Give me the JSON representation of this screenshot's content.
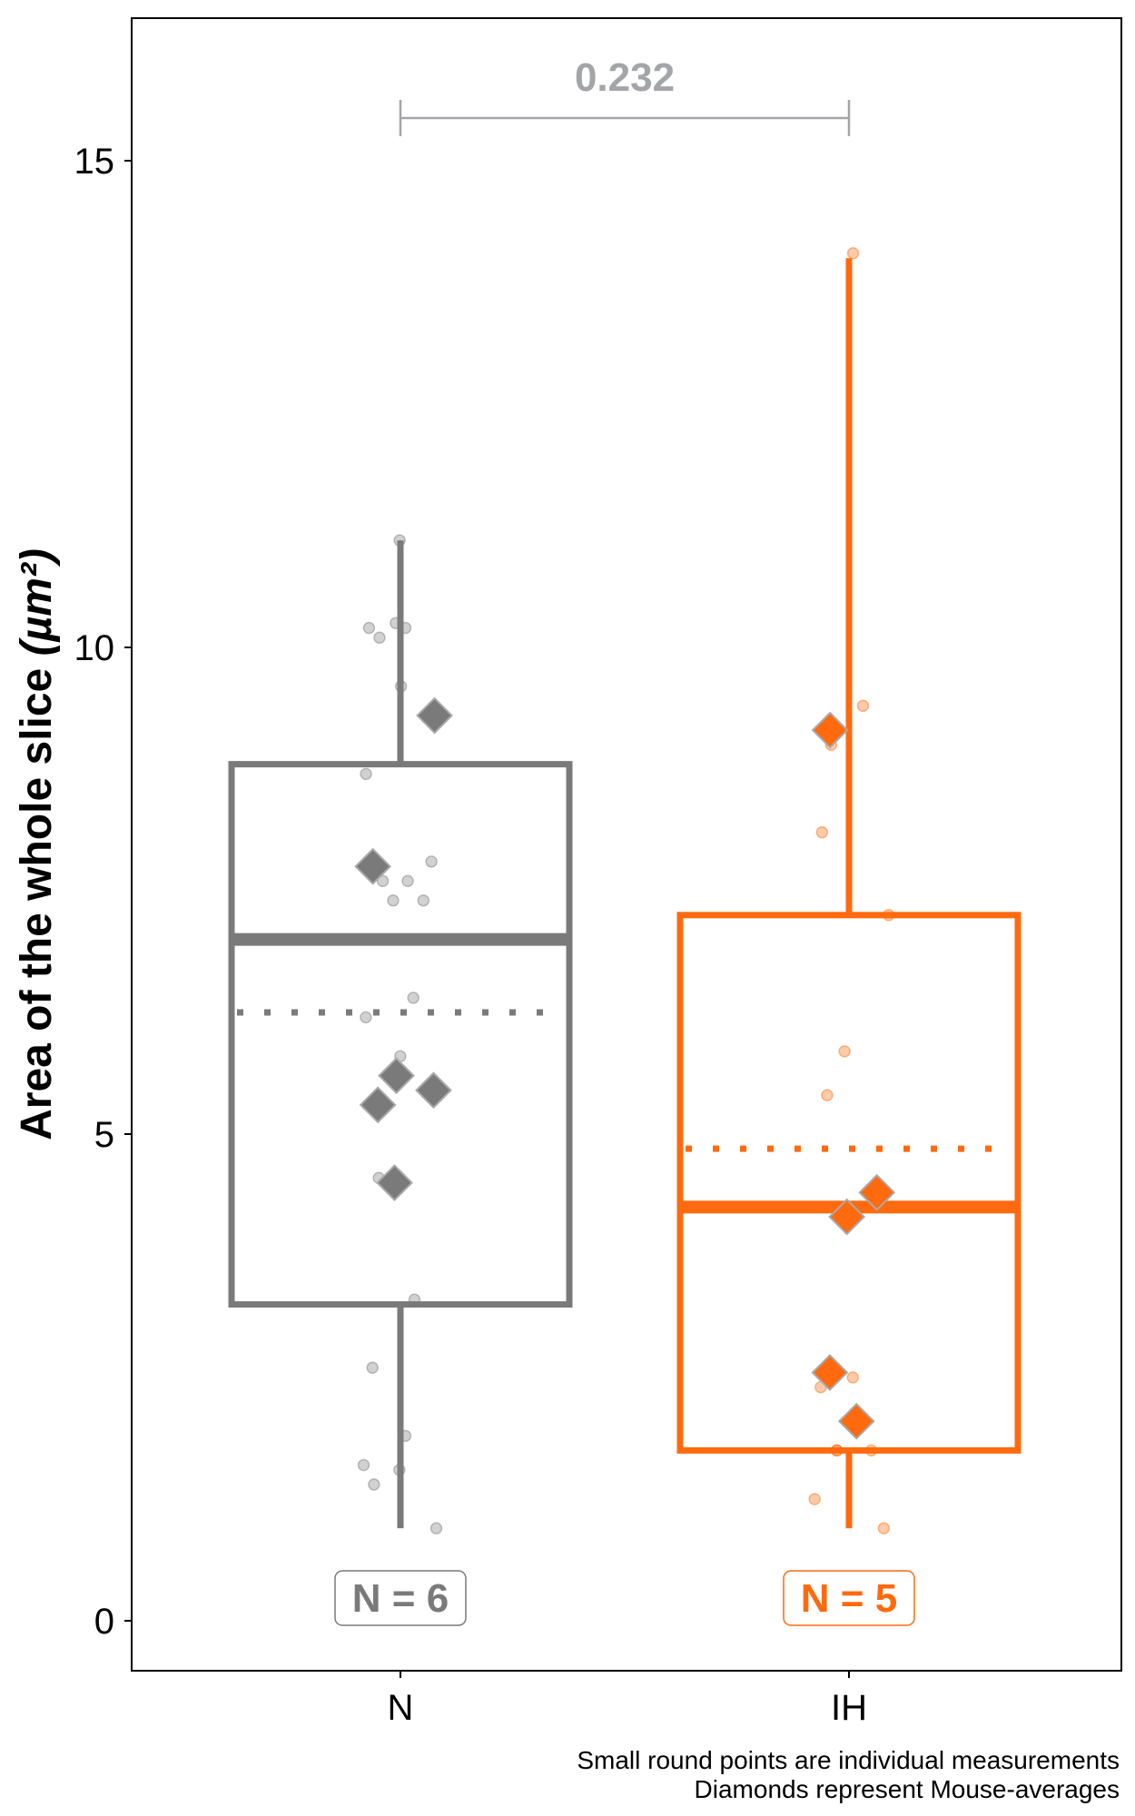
{
  "chart_data": {
    "type": "box",
    "ylabel": "Area of the whole slice (µm²)",
    "ylim": [
      0,
      16.5
    ],
    "yticks": [
      0,
      5,
      10,
      15
    ],
    "categories": [
      "N",
      "IH"
    ],
    "colors": {
      "N": "#7a7a7a",
      "IH": "#ff6a0e",
      "bracket": "#a3a5a8"
    },
    "groups": [
      {
        "name": "N",
        "n_label": "N = 6",
        "q1": 3.25,
        "median": 7.0,
        "q3": 8.8,
        "whisker_low": 0.95,
        "whisker_high": 11.1,
        "mean": 6.25,
        "points": [
          11.1,
          10.2,
          10.2,
          10.1,
          10.25,
          9.6,
          8.7,
          7.8,
          7.6,
          7.4,
          7.6,
          7.4,
          6.4,
          6.2,
          5.8,
          4.55,
          3.3,
          2.6,
          1.9,
          1.55,
          1.4,
          1.6,
          0.95
        ],
        "mouse_averages": [
          9.3,
          7.75,
          5.6,
          5.45,
          5.3,
          4.5
        ]
      },
      {
        "name": "IH",
        "n_label": "N = 5",
        "q1": 1.75,
        "median": 4.25,
        "q3": 7.25,
        "whisker_low": 0.95,
        "whisker_high": 14.0,
        "mean": 4.85,
        "points": [
          14.05,
          9.4,
          9.0,
          8.1,
          7.25,
          5.85,
          5.4,
          2.5,
          2.6,
          2.4,
          1.75,
          1.75,
          1.75,
          1.25,
          0.95
        ],
        "mouse_averages": [
          9.15,
          4.4,
          4.15,
          2.55,
          2.05
        ]
      }
    ],
    "comparison": {
      "p_value_label": "0.232",
      "between": [
        "N",
        "IH"
      ]
    },
    "caption_lines": [
      "Small round points are individual measurements",
      "Diamonds represent Mouse-averages"
    ]
  }
}
